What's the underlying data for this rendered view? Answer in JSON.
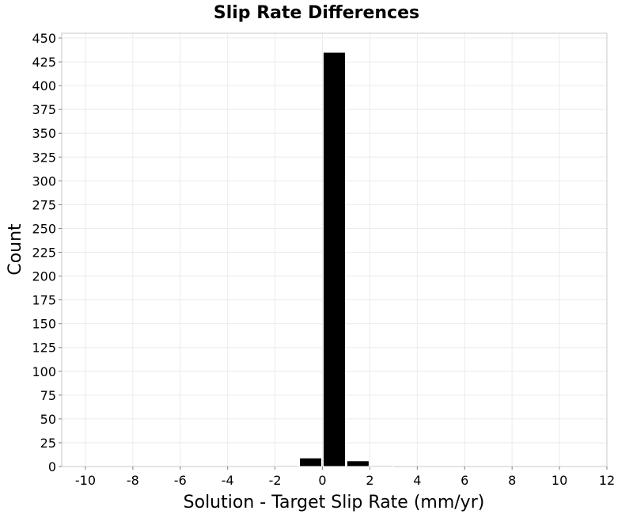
{
  "chart_data": {
    "type": "bar",
    "title": "Slip Rate Differences",
    "xlabel": "Solution - Target Slip Rate (mm/yr)",
    "ylabel": "Count",
    "xlim": [
      -11,
      12
    ],
    "ylim": [
      0,
      455
    ],
    "x_ticks": [
      -10,
      -8,
      -6,
      -4,
      -2,
      0,
      2,
      4,
      6,
      8,
      10,
      12
    ],
    "y_ticks": [
      0,
      25,
      50,
      75,
      100,
      125,
      150,
      175,
      200,
      225,
      250,
      275,
      300,
      325,
      350,
      375,
      400,
      425,
      450
    ],
    "bin_width": 1,
    "bins": [
      {
        "x": -2,
        "count": 1
      },
      {
        "x": -1,
        "count": 9
      },
      {
        "x": 0,
        "count": 435
      },
      {
        "x": 1,
        "count": 6
      },
      {
        "x": 2,
        "count": 1
      }
    ],
    "grid": true,
    "colors": {
      "bar": "#000000",
      "bar_edge": "#ffffff",
      "grid": "#ebebeb",
      "frame": "#c8c8c8"
    }
  }
}
